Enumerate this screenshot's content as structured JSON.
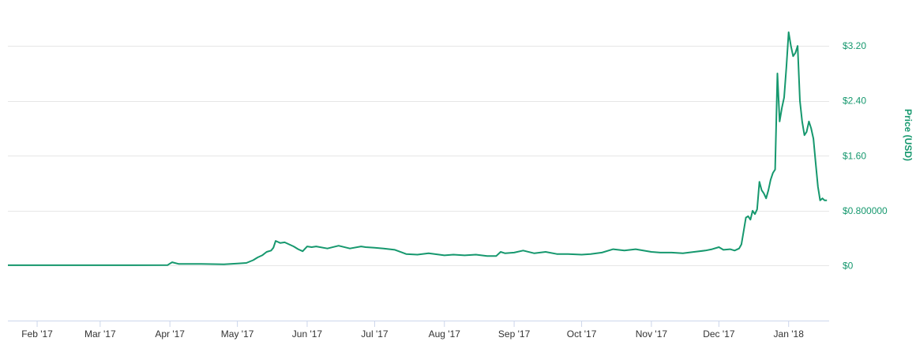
{
  "colors": {
    "series": "#16986e",
    "grid": "#e6e6e6",
    "axis": "#ccd6eb",
    "axis_title": "#16986e",
    "tick_label_y": "#16986e",
    "tick_label_x": "#333333"
  },
  "chart_data": {
    "type": "line",
    "title": "",
    "xlabel": "",
    "ylabel": "Price (USD)",
    "y_axis_side": "right",
    "grid": "horizontal",
    "legend": "none",
    "xlim": [
      "2017-01-19",
      "2018-01-19"
    ],
    "ylim": [
      -0.8,
      3.8
    ],
    "x_ticks": [
      {
        "date": "2017-02-01",
        "label": "Feb '17"
      },
      {
        "date": "2017-03-01",
        "label": "Mar '17"
      },
      {
        "date": "2017-04-01",
        "label": "Apr '17"
      },
      {
        "date": "2017-05-01",
        "label": "May '17"
      },
      {
        "date": "2017-06-01",
        "label": "Jun '17"
      },
      {
        "date": "2017-07-01",
        "label": "Jul '17"
      },
      {
        "date": "2017-08-01",
        "label": "Aug '17"
      },
      {
        "date": "2017-09-01",
        "label": "Sep '17"
      },
      {
        "date": "2017-10-01",
        "label": "Oct '17"
      },
      {
        "date": "2017-11-01",
        "label": "Nov '17"
      },
      {
        "date": "2017-12-01",
        "label": "Dec '17"
      },
      {
        "date": "2018-01-01",
        "label": "Jan '18"
      }
    ],
    "y_ticks": [
      {
        "value": 0,
        "label": "$0"
      },
      {
        "value": 0.8,
        "label": "$0.800000"
      },
      {
        "value": 1.6,
        "label": "$1.60"
      },
      {
        "value": 2.4,
        "label": "$2.40"
      },
      {
        "value": 3.2,
        "label": "$3.20"
      }
    ],
    "series": [
      {
        "x": [
          "2017-01-19",
          "2017-02-15",
          "2017-03-15",
          "2017-03-31",
          "2017-04-01",
          "2017-04-02",
          "2017-04-05",
          "2017-04-15",
          "2017-04-25",
          "2017-05-01",
          "2017-05-05",
          "2017-05-08",
          "2017-05-10",
          "2017-05-12",
          "2017-05-14",
          "2017-05-16",
          "2017-05-17",
          "2017-05-18",
          "2017-05-20",
          "2017-05-22",
          "2017-05-24",
          "2017-05-26",
          "2017-05-28",
          "2017-05-30",
          "2017-06-01",
          "2017-06-03",
          "2017-06-05",
          "2017-06-10",
          "2017-06-15",
          "2017-06-20",
          "2017-06-25",
          "2017-06-27",
          "2017-07-01",
          "2017-07-05",
          "2017-07-10",
          "2017-07-15",
          "2017-07-20",
          "2017-07-25",
          "2017-08-01",
          "2017-08-05",
          "2017-08-10",
          "2017-08-15",
          "2017-08-20",
          "2017-08-24",
          "2017-08-26",
          "2017-08-28",
          "2017-09-01",
          "2017-09-05",
          "2017-09-10",
          "2017-09-15",
          "2017-09-20",
          "2017-09-25",
          "2017-10-01",
          "2017-10-05",
          "2017-10-10",
          "2017-10-15",
          "2017-10-20",
          "2017-10-25",
          "2017-11-01",
          "2017-11-05",
          "2017-11-10",
          "2017-11-15",
          "2017-11-20",
          "2017-11-25",
          "2017-11-28",
          "2017-12-01",
          "2017-12-03",
          "2017-12-06",
          "2017-12-08",
          "2017-12-10",
          "2017-12-11",
          "2017-12-12",
          "2017-12-13",
          "2017-12-14",
          "2017-12-15",
          "2017-12-16",
          "2017-12-17",
          "2017-12-18",
          "2017-12-19",
          "2017-12-20",
          "2017-12-21",
          "2017-12-22",
          "2017-12-23",
          "2017-12-24",
          "2017-12-25",
          "2017-12-26",
          "2017-12-27",
          "2017-12-28",
          "2017-12-29",
          "2017-12-30",
          "2017-12-31",
          "2018-01-01",
          "2018-01-02",
          "2018-01-03",
          "2018-01-04",
          "2018-01-05",
          "2018-01-06",
          "2018-01-07",
          "2018-01-08",
          "2018-01-09",
          "2018-01-10",
          "2018-01-11",
          "2018-01-12",
          "2018-01-13",
          "2018-01-14",
          "2018-01-15",
          "2018-01-16",
          "2018-01-17",
          "2018-01-18"
        ],
        "y": [
          0.006,
          0.006,
          0.006,
          0.008,
          0.03,
          0.05,
          0.025,
          0.025,
          0.02,
          0.03,
          0.04,
          0.08,
          0.12,
          0.15,
          0.2,
          0.22,
          0.26,
          0.36,
          0.33,
          0.34,
          0.31,
          0.28,
          0.24,
          0.21,
          0.28,
          0.27,
          0.28,
          0.25,
          0.29,
          0.25,
          0.28,
          0.27,
          0.26,
          0.25,
          0.23,
          0.17,
          0.16,
          0.18,
          0.15,
          0.16,
          0.15,
          0.16,
          0.14,
          0.14,
          0.2,
          0.18,
          0.19,
          0.22,
          0.18,
          0.2,
          0.17,
          0.17,
          0.16,
          0.17,
          0.19,
          0.24,
          0.22,
          0.24,
          0.2,
          0.19,
          0.19,
          0.18,
          0.2,
          0.22,
          0.24,
          0.27,
          0.23,
          0.24,
          0.22,
          0.25,
          0.31,
          0.5,
          0.7,
          0.72,
          0.67,
          0.8,
          0.75,
          0.82,
          1.22,
          1.1,
          1.05,
          0.98,
          1.1,
          1.25,
          1.35,
          1.4,
          2.8,
          2.1,
          2.3,
          2.45,
          2.9,
          3.4,
          3.2,
          3.05,
          3.1,
          3.2,
          2.4,
          2.1,
          1.9,
          1.95,
          2.1,
          2.0,
          1.85,
          1.5,
          1.15,
          0.95,
          0.98,
          0.95,
          0.95
        ]
      }
    ]
  }
}
